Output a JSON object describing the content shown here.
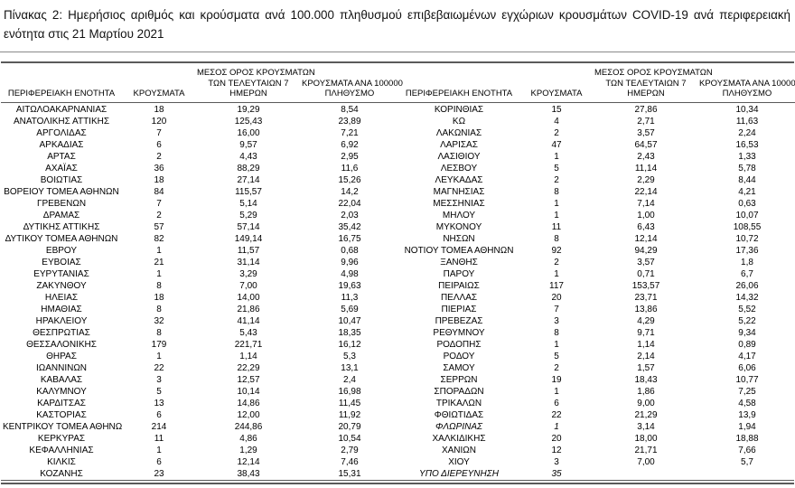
{
  "page": {
    "title": "Πίνακας 2:  Ημερήσιος αριθμός και κρούσματα ανά 100.000 πληθυσμού επιβεβαιωμένων εγχώριων κρουσμάτων COVID-19 ανά περιφερειακή ενότητα στις 21 Μαρτίου 2021"
  },
  "table": {
    "headers": {
      "region": "ΠΕΡΙΦΕΡΕΙΑΚΗ ΕΝΟΤΗΤΑ",
      "cases": "ΚΡΟΥΣΜΑΤΑ",
      "avg7_line1": "ΜΕΣΟΣ ΟΡΟΣ ΚΡΟΥΣΜΑΤΩΝ",
      "avg7_line2": "ΤΩΝ ΤΕΛΕΥΤΑΙΩΝ 7",
      "avg7_line3": "ΗΜΕΡΩΝ",
      "per100k_line1": "ΚΡΟΥΣΜΑΤΑ ΑΝΑ 100000",
      "per100k_line2": "ΠΛΗΘΥΣΜΟ"
    },
    "rows_left": [
      {
        "name": "ΑΙΤΩΛΟΑΚΑΡΝΑΝΙΑΣ",
        "cases": "18",
        "avg7": "19,29",
        "per100k": "8,54"
      },
      {
        "name": "ΑΝΑΤΟΛΙΚΗΣ ΑΤΤΙΚΗΣ",
        "cases": "120",
        "avg7": "125,43",
        "per100k": "23,89"
      },
      {
        "name": "ΑΡΓΟΛΙΔΑΣ",
        "cases": "7",
        "avg7": "16,00",
        "per100k": "7,21"
      },
      {
        "name": "ΑΡΚΑΔΙΑΣ",
        "cases": "6",
        "avg7": "9,57",
        "per100k": "6,92"
      },
      {
        "name": "ΑΡΤΑΣ",
        "cases": "2",
        "avg7": "4,43",
        "per100k": "2,95"
      },
      {
        "name": "ΑΧΑΪΑΣ",
        "cases": "36",
        "avg7": "88,29",
        "per100k": "11,6"
      },
      {
        "name": "ΒΟΙΩΤΙΑΣ",
        "cases": "18",
        "avg7": "27,14",
        "per100k": "15,26"
      },
      {
        "name": "ΒΟΡΕΙΟΥ ΤΟΜΕΑ ΑΘΗΝΩΝ",
        "cases": "84",
        "avg7": "115,57",
        "per100k": "14,2"
      },
      {
        "name": "ΓΡΕΒΕΝΩΝ",
        "cases": "7",
        "avg7": "5,14",
        "per100k": "22,04"
      },
      {
        "name": "ΔΡΑΜΑΣ",
        "cases": "2",
        "avg7": "5,29",
        "per100k": "2,03"
      },
      {
        "name": "ΔΥΤΙΚΗΣ ΑΤΤΙΚΗΣ",
        "cases": "57",
        "avg7": "57,14",
        "per100k": "35,42"
      },
      {
        "name": "ΔΥΤΙΚΟΥ ΤΟΜΕΑ ΑΘΗΝΩΝ",
        "cases": "82",
        "avg7": "149,14",
        "per100k": "16,75"
      },
      {
        "name": "ΕΒΡΟΥ",
        "cases": "1",
        "avg7": "11,57",
        "per100k": "0,68"
      },
      {
        "name": "ΕΥΒΟΙΑΣ",
        "cases": "21",
        "avg7": "31,14",
        "per100k": "9,96"
      },
      {
        "name": "ΕΥΡΥΤΑΝΙΑΣ",
        "cases": "1",
        "avg7": "3,29",
        "per100k": "4,98"
      },
      {
        "name": "ΖΑΚΥΝΘΟΥ",
        "cases": "8",
        "avg7": "7,00",
        "per100k": "19,63"
      },
      {
        "name": "ΗΛΕΙΑΣ",
        "cases": "18",
        "avg7": "14,00",
        "per100k": "11,3"
      },
      {
        "name": "ΗΜΑΘΙΑΣ",
        "cases": "8",
        "avg7": "21,86",
        "per100k": "5,69"
      },
      {
        "name": "ΗΡΑΚΛΕΙΟΥ",
        "cases": "32",
        "avg7": "41,14",
        "per100k": "10,47"
      },
      {
        "name": "ΘΕΣΠΡΩΤΙΑΣ",
        "cases": "8",
        "avg7": "5,43",
        "per100k": "18,35"
      },
      {
        "name": "ΘΕΣΣΑΛΟΝΙΚΗΣ",
        "cases": "179",
        "avg7": "221,71",
        "per100k": "16,12"
      },
      {
        "name": "ΘΗΡΑΣ",
        "cases": "1",
        "avg7": "1,14",
        "per100k": "5,3"
      },
      {
        "name": "ΙΩΑΝΝΙΝΩΝ",
        "cases": "22",
        "avg7": "22,29",
        "per100k": "13,1"
      },
      {
        "name": "ΚΑΒΑΛΑΣ",
        "cases": "3",
        "avg7": "12,57",
        "per100k": "2,4"
      },
      {
        "name": "ΚΑΛΥΜΝΟΥ",
        "cases": "5",
        "avg7": "10,14",
        "per100k": "16,98"
      },
      {
        "name": "ΚΑΡΔΙΤΣΑΣ",
        "cases": "13",
        "avg7": "14,86",
        "per100k": "11,45"
      },
      {
        "name": "ΚΑΣΤΟΡΙΑΣ",
        "cases": "6",
        "avg7": "12,00",
        "per100k": "11,92"
      },
      {
        "name": "ΚΕΝΤΡΙΚΟΥ ΤΟΜΕΑ ΑΘΗΝΩΝ",
        "cases": "214",
        "avg7": "244,86",
        "per100k": "20,79"
      },
      {
        "name": "ΚΕΡΚΥΡΑΣ",
        "cases": "11",
        "avg7": "4,86",
        "per100k": "10,54"
      },
      {
        "name": "ΚΕΦΑΛΛΗΝΙΑΣ",
        "cases": "1",
        "avg7": "1,29",
        "per100k": "2,79"
      },
      {
        "name": "ΚΙΛΚΙΣ",
        "cases": "6",
        "avg7": "12,14",
        "per100k": "7,46"
      },
      {
        "name": "ΚΟΖΑΝΗΣ",
        "cases": "23",
        "avg7": "38,43",
        "per100k": "15,31"
      }
    ],
    "rows_right": [
      {
        "name": "ΚΟΡΙΝΘΙΑΣ",
        "cases": "15",
        "avg7": "27,86",
        "per100k": "10,34"
      },
      {
        "name": "ΚΩ",
        "cases": "4",
        "avg7": "2,71",
        "per100k": "11,63"
      },
      {
        "name": "ΛΑΚΩΝΙΑΣ",
        "cases": "2",
        "avg7": "3,57",
        "per100k": "2,24"
      },
      {
        "name": "ΛΑΡΙΣΑΣ",
        "cases": "47",
        "avg7": "64,57",
        "per100k": "16,53"
      },
      {
        "name": "ΛΑΣΙΘΙΟΥ",
        "cases": "1",
        "avg7": "2,43",
        "per100k": "1,33"
      },
      {
        "name": "ΛΕΣΒΟΥ",
        "cases": "5",
        "avg7": "11,14",
        "per100k": "5,78"
      },
      {
        "name": "ΛΕΥΚΑΔΑΣ",
        "cases": "2",
        "avg7": "2,29",
        "per100k": "8,44"
      },
      {
        "name": "ΜΑΓΝΗΣΙΑΣ",
        "cases": "8",
        "avg7": "22,14",
        "per100k": "4,21"
      },
      {
        "name": "ΜΕΣΣΗΝΙΑΣ",
        "cases": "1",
        "avg7": "7,14",
        "per100k": "0,63"
      },
      {
        "name": "ΜΗΛΟΥ",
        "cases": "1",
        "avg7": "1,00",
        "per100k": "10,07"
      },
      {
        "name": "ΜΥΚΟΝΟΥ",
        "cases": "11",
        "avg7": "6,43",
        "per100k": "108,55"
      },
      {
        "name": "ΝΗΣΩΝ",
        "cases": "8",
        "avg7": "12,14",
        "per100k": "10,72"
      },
      {
        "name": "ΝΟΤΙΟΥ ΤΟΜΕΑ ΑΘΗΝΩΝ",
        "cases": "92",
        "avg7": "94,29",
        "per100k": "17,36"
      },
      {
        "name": "ΞΑΝΘΗΣ",
        "cases": "2",
        "avg7": "3,57",
        "per100k": "1,8"
      },
      {
        "name": "ΠΑΡΟΥ",
        "cases": "1",
        "avg7": "0,71",
        "per100k": "6,7"
      },
      {
        "name": "ΠΕΙΡΑΙΩΣ",
        "cases": "117",
        "avg7": "153,57",
        "per100k": "26,06"
      },
      {
        "name": "ΠΕΛΛΑΣ",
        "cases": "20",
        "avg7": "23,71",
        "per100k": "14,32"
      },
      {
        "name": "ΠΙΕΡΙΑΣ",
        "cases": "7",
        "avg7": "13,86",
        "per100k": "5,52"
      },
      {
        "name": "ΠΡΕΒΕΖΑΣ",
        "cases": "3",
        "avg7": "4,29",
        "per100k": "5,22"
      },
      {
        "name": "ΡΕΘΥΜΝΟΥ",
        "cases": "8",
        "avg7": "9,71",
        "per100k": "9,34"
      },
      {
        "name": "ΡΟΔΟΠΗΣ",
        "cases": "1",
        "avg7": "1,14",
        "per100k": "0,89"
      },
      {
        "name": "ΡΟΔΟΥ",
        "cases": "5",
        "avg7": "2,14",
        "per100k": "4,17"
      },
      {
        "name": "ΣΑΜΟΥ",
        "cases": "2",
        "avg7": "1,57",
        "per100k": "6,06"
      },
      {
        "name": "ΣΕΡΡΩΝ",
        "cases": "19",
        "avg7": "18,43",
        "per100k": "10,77"
      },
      {
        "name": "ΣΠΟΡΑΔΩΝ",
        "cases": "1",
        "avg7": "1,86",
        "per100k": "7,25"
      },
      {
        "name": "ΤΡΙΚΑΛΩΝ",
        "cases": "6",
        "avg7": "9,00",
        "per100k": "4,58"
      },
      {
        "name": "ΦΘΙΩΤΙΔΑΣ",
        "cases": "22",
        "avg7": "21,29",
        "per100k": "13,9"
      },
      {
        "name": "ΦΛΩΡΙΝΑΣ",
        "cases": "1",
        "avg7": "3,14",
        "per100k": "1,94",
        "italic": true
      },
      {
        "name": "ΧΑΛΚΙΔΙΚΗΣ",
        "cases": "20",
        "avg7": "18,00",
        "per100k": "18,88"
      },
      {
        "name": "ΧΑΝΙΩΝ",
        "cases": "12",
        "avg7": "21,71",
        "per100k": "7,66"
      },
      {
        "name": "ΧΙΟΥ",
        "cases": "3",
        "avg7": "7,00",
        "per100k": "5,7"
      },
      {
        "name": "ΥΠΟ ΔΙΕΡΕΥΝΗΣΗ",
        "cases": "35",
        "avg7": "",
        "per100k": "",
        "italic": true
      }
    ]
  }
}
